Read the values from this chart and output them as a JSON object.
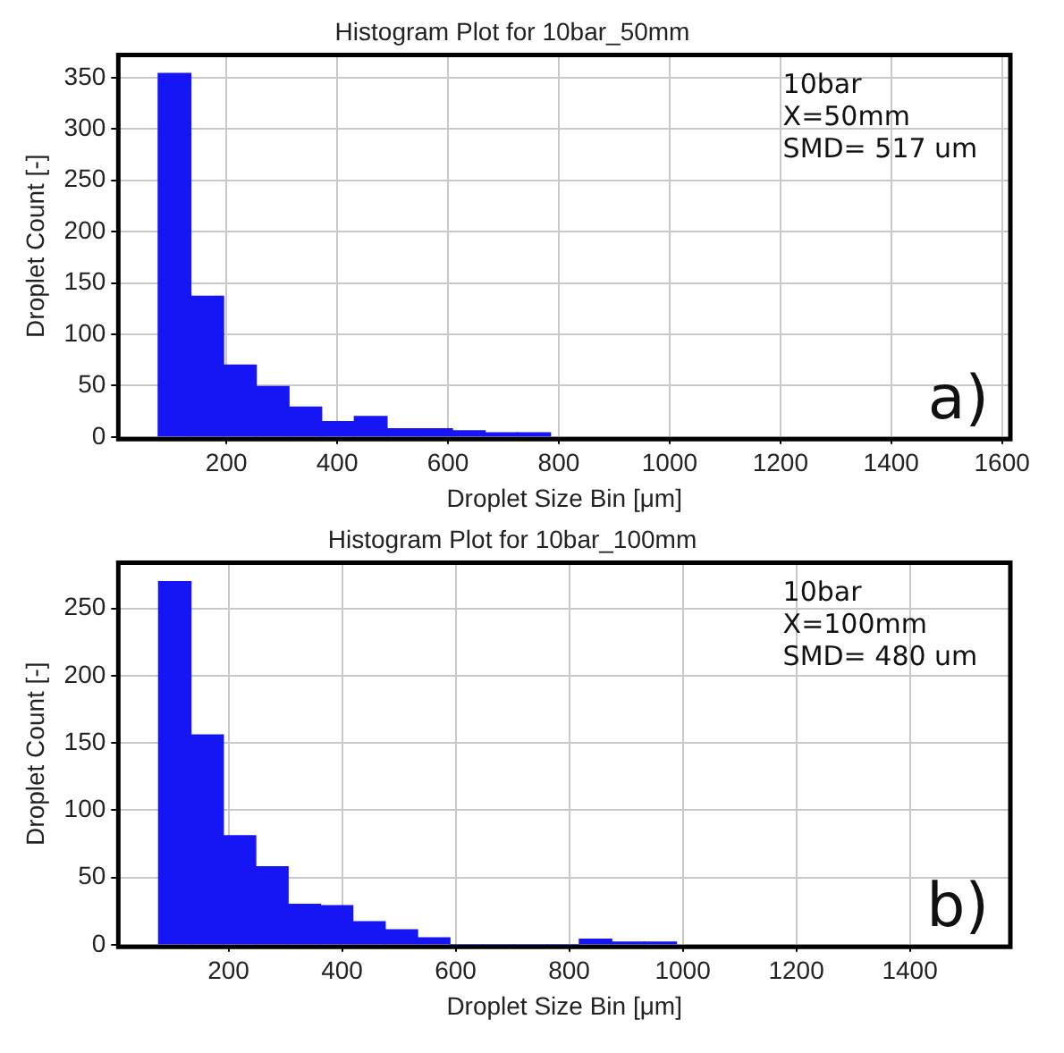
{
  "chart_data": [
    {
      "type": "histogram",
      "title": "Histogram Plot for 10bar_50mm",
      "xlabel": "Droplet Size Bin [μm]",
      "ylabel": "Droplet Count [-]",
      "bins": [
        77,
        136,
        195,
        254,
        313,
        372,
        431,
        490,
        549,
        608,
        667,
        726,
        785
      ],
      "values": [
        354,
        137,
        70,
        49,
        29,
        15,
        20,
        8,
        8,
        6,
        4,
        4
      ],
      "color": "#1515f5",
      "xlim": [
        5,
        1615
      ],
      "xticks": [
        200,
        400,
        600,
        800,
        1000,
        1200,
        1400,
        1600
      ],
      "ylim": [
        0,
        372
      ],
      "yticks": [
        0,
        50,
        100,
        150,
        200,
        250,
        300,
        350
      ],
      "grid": true,
      "annotations": [
        "10bar",
        "X=50mm",
        "SMD= 517 um",
        "a)"
      ]
    },
    {
      "type": "histogram",
      "title": "Histogram Plot for 10bar_100mm",
      "xlabel": "Droplet Size Bin [μm]",
      "ylabel": "Droplet Count [-]",
      "bins": [
        77,
        134,
        191,
        248,
        305,
        362,
        419,
        476,
        533,
        590,
        647,
        704,
        761,
        818,
        875,
        932,
        989
      ],
      "values": [
        270,
        156,
        81,
        58,
        30,
        29,
        17,
        11,
        5,
        0,
        0,
        0,
        0,
        4,
        2,
        2
      ],
      "color": "#1515f5",
      "xlim": [
        6,
        1577
      ],
      "xticks": [
        200,
        400,
        600,
        800,
        1000,
        1200,
        1400
      ],
      "ylim": [
        0,
        284
      ],
      "yticks": [
        0,
        50,
        100,
        150,
        200,
        250
      ],
      "grid": true,
      "annotations": [
        "10bar",
        "X=100mm",
        "SMD= 480 um",
        "b)"
      ]
    }
  ]
}
